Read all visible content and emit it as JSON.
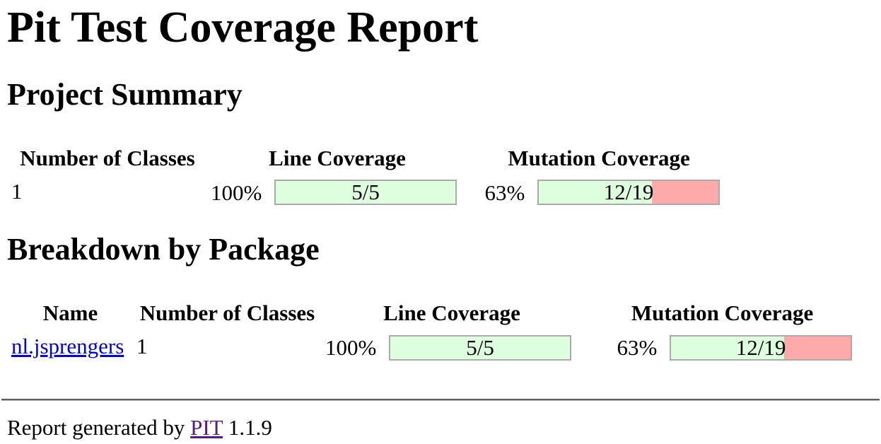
{
  "page": {
    "title": "Pit Test Coverage Report",
    "footer": {
      "prefix": "Report generated by",
      "link_label": "PIT",
      "version": "1.1.9"
    }
  },
  "project_summary": {
    "heading": "Project Summary",
    "columns": [
      "Number of Classes",
      "Line Coverage",
      "Mutation Coverage"
    ],
    "row": {
      "number_of_classes": "1",
      "line_coverage": {
        "percent": "100%",
        "fraction": "5/5",
        "fill_percent": 100
      },
      "mutation_coverage": {
        "percent": "63%",
        "fraction": "12/19",
        "fill_percent": 63
      }
    }
  },
  "breakdown": {
    "heading": "Breakdown by Package",
    "columns": [
      "Name",
      "Number of Classes",
      "Line Coverage",
      "Mutation Coverage"
    ],
    "rows": [
      {
        "name": "nl.jsprengers",
        "number_of_classes": "1",
        "line_coverage": {
          "percent": "100%",
          "fraction": "5/5",
          "fill_percent": 100
        },
        "mutation_coverage": {
          "percent": "63%",
          "fraction": "12/19",
          "fill_percent": 63
        }
      }
    ]
  },
  "colors": {
    "bar_green": "#DDFFDD",
    "bar_red": "#FFAAAA",
    "bar_border": "#AAAAAA",
    "link_blue": "#0000EE",
    "link_visited_purple": "#551A8B"
  }
}
